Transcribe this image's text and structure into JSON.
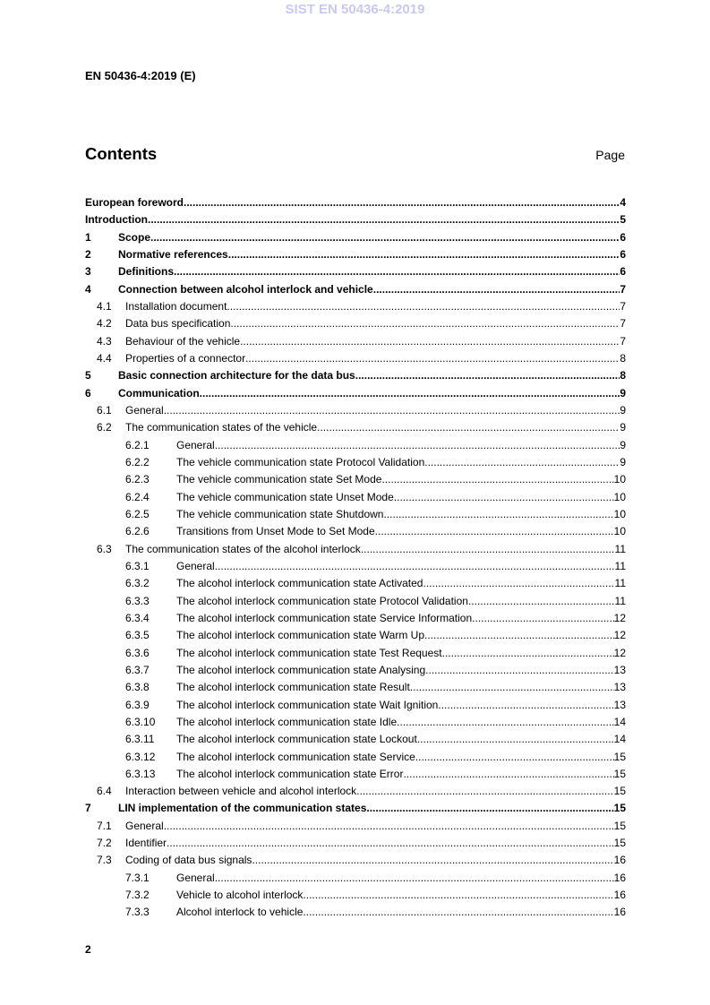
{
  "watermark": "SIST EN 50436-4:2019",
  "doc_id": "EN 50436-4:2019 (E)",
  "heading": "Contents",
  "page_header": "Page",
  "page_number": "2",
  "toc": [
    {
      "level": 0,
      "num": "",
      "title": "European foreword",
      "page": "4"
    },
    {
      "level": 0,
      "num": "",
      "title": "Introduction",
      "page": "5"
    },
    {
      "level": 1,
      "num": "1",
      "title": "Scope",
      "page": "6"
    },
    {
      "level": 1,
      "num": "2",
      "title": "Normative references",
      "page": "6"
    },
    {
      "level": 1,
      "num": "3",
      "title": "Definitions",
      "page": "6"
    },
    {
      "level": 1,
      "num": "4",
      "title": "Connection between alcohol interlock and vehicle",
      "page": "7"
    },
    {
      "level": 2,
      "num": "4.1",
      "title": "Installation document",
      "page": "7"
    },
    {
      "level": 2,
      "num": "4.2",
      "title": "Data bus specification",
      "page": "7"
    },
    {
      "level": 2,
      "num": "4.3",
      "title": "Behaviour of the vehicle",
      "page": "7"
    },
    {
      "level": 2,
      "num": "4.4",
      "title": "Properties of a connector",
      "page": "8"
    },
    {
      "level": 1,
      "num": "5",
      "title": "Basic connection architecture for the data bus",
      "page": "8"
    },
    {
      "level": 1,
      "num": "6",
      "title": "Communication ",
      "page": "9"
    },
    {
      "level": 2,
      "num": "6.1",
      "title": "General",
      "page": "9"
    },
    {
      "level": 2,
      "num": "6.2",
      "title": "The communication states of the vehicle",
      "page": "9"
    },
    {
      "level": 3,
      "num": "6.2.1",
      "title": "General ",
      "page": "9"
    },
    {
      "level": 3,
      "num": "6.2.2",
      "title": "The vehicle communication state Protocol Validation ",
      "page": "9"
    },
    {
      "level": 3,
      "num": "6.2.3",
      "title": "The vehicle communication state Set Mode",
      "page": "10"
    },
    {
      "level": 3,
      "num": "6.2.4",
      "title": "The vehicle communication state Unset Mode",
      "page": "10"
    },
    {
      "level": 3,
      "num": "6.2.5",
      "title": "The vehicle communication state Shutdown ",
      "page": "10"
    },
    {
      "level": 3,
      "num": "6.2.6",
      "title": "Transitions from Unset Mode to Set Mode",
      "page": "10"
    },
    {
      "level": 2,
      "num": "6.3",
      "title": "The communication states of the alcohol interlock ",
      "page": "11"
    },
    {
      "level": 3,
      "num": "6.3.1",
      "title": "General ",
      "page": "11"
    },
    {
      "level": 3,
      "num": "6.3.2",
      "title": "The alcohol interlock communication state Activated",
      "page": "11"
    },
    {
      "level": 3,
      "num": "6.3.3",
      "title": "The alcohol interlock communication state Protocol Validation ",
      "page": "11"
    },
    {
      "level": 3,
      "num": "6.3.4",
      "title": "The alcohol interlock communication state Service Information ",
      "page": "12"
    },
    {
      "level": 3,
      "num": "6.3.5",
      "title": "The alcohol interlock communication state Warm Up ",
      "page": "12"
    },
    {
      "level": 3,
      "num": "6.3.6",
      "title": "The alcohol interlock communication state Test Request ",
      "page": "12"
    },
    {
      "level": 3,
      "num": "6.3.7",
      "title": "The alcohol interlock communication state Analysing",
      "page": "13"
    },
    {
      "level": 3,
      "num": "6.3.8",
      "title": "The alcohol interlock communication state Result ",
      "page": "13"
    },
    {
      "level": 3,
      "num": "6.3.9",
      "title": "The alcohol interlock communication state Wait Ignition",
      "page": "13"
    },
    {
      "level": 3,
      "num": "6.3.10",
      "title": "The alcohol interlock communication state Idle",
      "page": "14"
    },
    {
      "level": 3,
      "num": "6.3.11",
      "title": "The alcohol interlock communication state Lockout",
      "page": "14"
    },
    {
      "level": 3,
      "num": "6.3.12",
      "title": "The alcohol interlock communication state Service",
      "page": "15"
    },
    {
      "level": 3,
      "num": "6.3.13",
      "title": "The alcohol interlock communication state Error",
      "page": "15"
    },
    {
      "level": 2,
      "num": "6.4",
      "title": "Interaction between vehicle and alcohol interlock",
      "page": "15"
    },
    {
      "level": 1,
      "num": "7",
      "title": "LIN implementation of the communication states ",
      "page": "15"
    },
    {
      "level": 2,
      "num": "7.1",
      "title": "General",
      "page": "15"
    },
    {
      "level": 2,
      "num": "7.2",
      "title": "Identifier",
      "page": "15"
    },
    {
      "level": 2,
      "num": "7.3",
      "title": "Coding of data bus signals",
      "page": "16"
    },
    {
      "level": 3,
      "num": "7.3.1",
      "title": "General ",
      "page": "16"
    },
    {
      "level": 3,
      "num": "7.3.2",
      "title": "Vehicle to alcohol interlock ",
      "page": "16"
    },
    {
      "level": 3,
      "num": "7.3.3",
      "title": "Alcohol interlock to vehicle ",
      "page": "16"
    }
  ]
}
